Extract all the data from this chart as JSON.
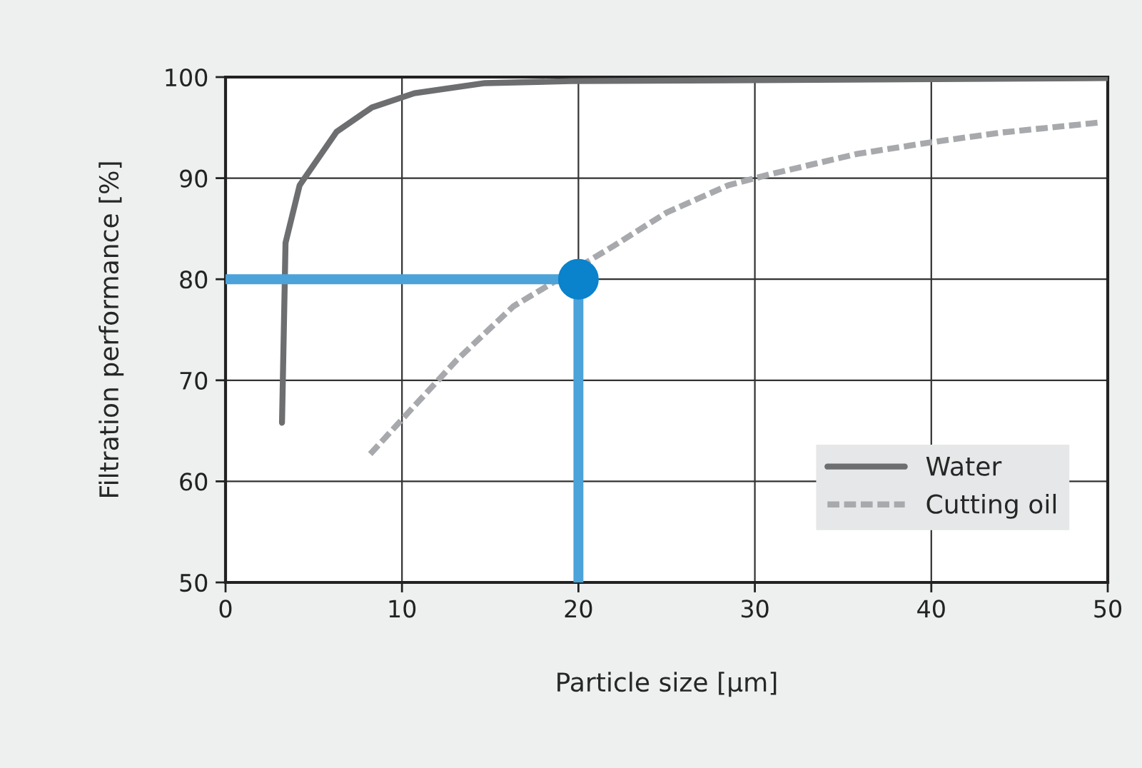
{
  "chart_data": {
    "type": "line",
    "xlabel": "Particle size [µm]",
    "ylabel": "Filtration performance [%]",
    "xlim": [
      0,
      50
    ],
    "xticks": [
      0,
      10,
      20,
      30,
      40,
      50
    ],
    "ylim": [
      50,
      100
    ],
    "yticks": [
      50,
      60,
      70,
      80,
      90,
      100
    ],
    "grid": true,
    "legend": "bottom right",
    "series": [
      {
        "name": "Water",
        "color": "#6d6e70",
        "line_style": "solid",
        "x": [
          3.2,
          3.4,
          4.2,
          6.3,
          8.3,
          10.7,
          14.7,
          19.6,
          30,
          50
        ],
        "values": [
          65.8,
          83.6,
          89.3,
          94.6,
          97,
          98.4,
          99.4,
          99.6,
          99.7,
          99.9
        ]
      },
      {
        "name": "Cutting oil",
        "color": "#a7a9ac",
        "line_style": "dashed",
        "x": [
          8.2,
          10.3,
          13.1,
          16.3,
          22,
          25,
          28.5,
          30.9,
          35.8,
          39.8,
          43.9,
          49.5
        ],
        "values": [
          62.7,
          66.7,
          72,
          77.3,
          83.3,
          86.6,
          89.3,
          90.4,
          92.4,
          93.5,
          94.5,
          95.5
        ]
      },
      {
        "color": "#4ba3d9",
        "line_style": "solid",
        "x": [
          0,
          20,
          20
        ],
        "values": [
          80,
          80,
          50
        ]
      },
      {
        "type": "scatter",
        "color": "#0a82cc",
        "marker": "circle",
        "x": [
          20
        ],
        "values": [
          80
        ]
      }
    ]
  }
}
